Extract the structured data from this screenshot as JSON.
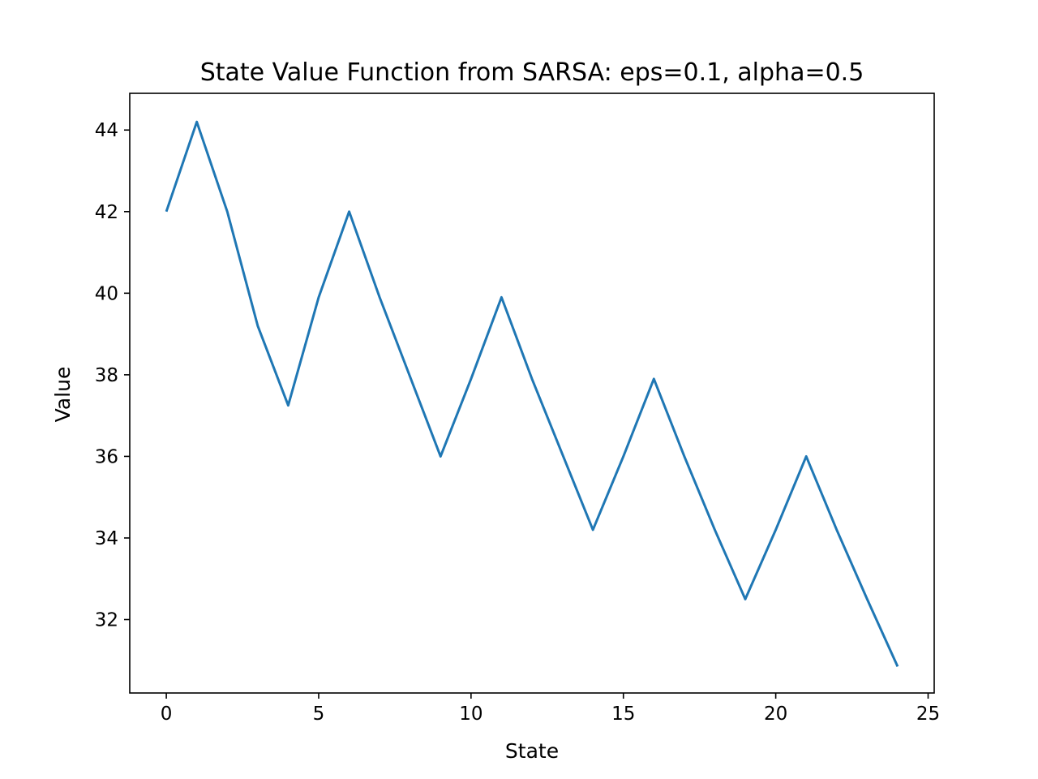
{
  "chart_data": {
    "type": "line",
    "title": "State Value Function from SARSA: eps=0.1, alpha=0.5",
    "xlabel": "State",
    "ylabel": "Value",
    "xlim": [
      -1.2,
      25.2
    ],
    "ylim": [
      30.2,
      44.9
    ],
    "xticks": [
      0,
      5,
      10,
      15,
      20,
      25
    ],
    "yticks": [
      32,
      34,
      36,
      38,
      40,
      42,
      44
    ],
    "grid": false,
    "series": [
      {
        "color": "#1f77b4",
        "x": [
          0,
          1,
          2,
          3,
          4,
          5,
          6,
          7,
          8,
          9,
          10,
          11,
          12,
          13,
          14,
          15,
          16,
          17,
          18,
          19,
          20,
          21,
          22,
          23,
          24
        ],
        "y": [
          42.0,
          44.2,
          42.0,
          39.2,
          37.25,
          39.9,
          42.0,
          39.9,
          37.95,
          36.0,
          37.9,
          39.9,
          37.9,
          36.05,
          34.2,
          36.0,
          37.9,
          36.0,
          34.2,
          32.5,
          34.2,
          36.0,
          34.2,
          32.5,
          30.85
        ]
      }
    ]
  }
}
